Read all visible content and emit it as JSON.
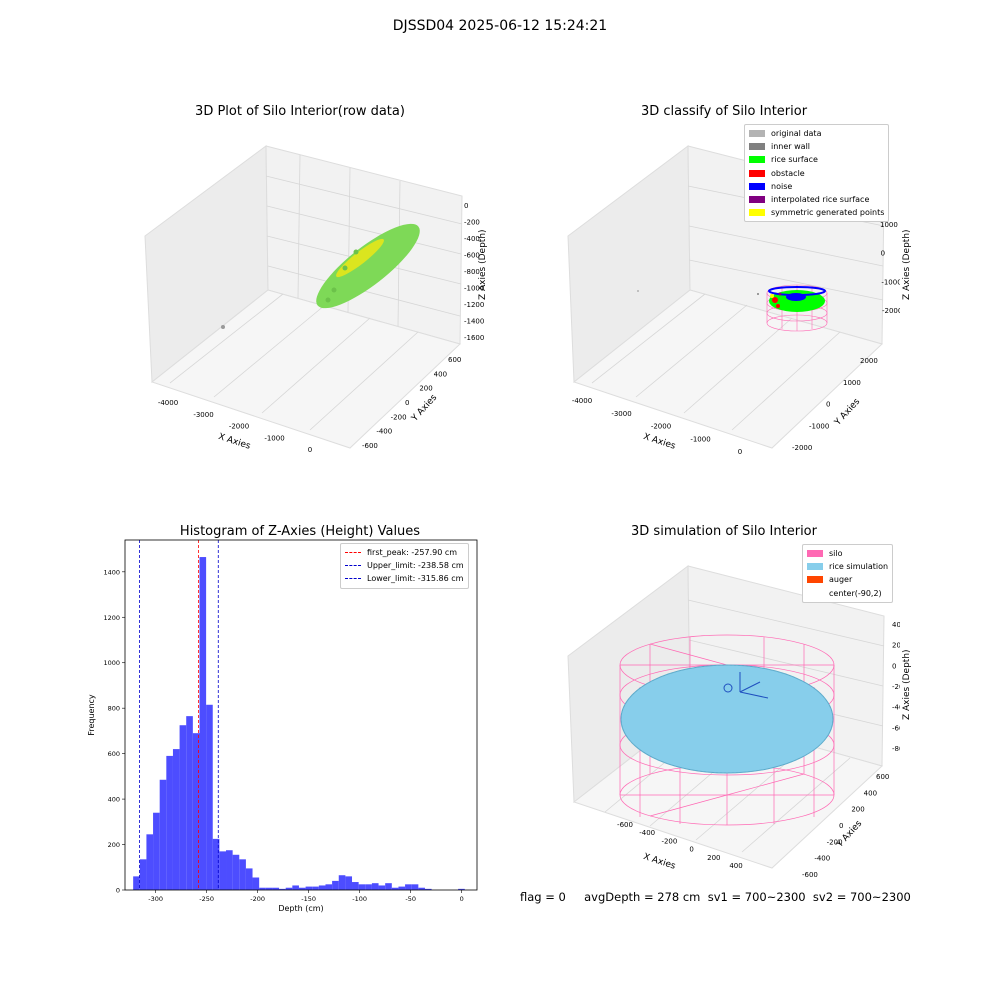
{
  "suptitle": "DJSSD04 2025-06-12 15:24:21",
  "footer_text": "flag = 0     avgDepth = 278 cm  sv1 = 700~2300  sv2 = 700~2300",
  "chart_data": [
    {
      "type": "scatter",
      "projection": "3d",
      "title": "3D Plot of Silo Interior(row data)",
      "xlabel": "X Axies",
      "ylabel": "Y Axies",
      "zlabel": "Z Axies (Depth)",
      "x_ticks": [
        "-4000",
        "-3000",
        "-2000",
        "-1000",
        "0"
      ],
      "y_ticks": [
        "-600",
        "-400",
        "-200",
        "0",
        "200",
        "400",
        "600"
      ],
      "z_ticks": [
        "0",
        "-200",
        "-400",
        "-600",
        "-800",
        "-1000",
        "-1200",
        "-1400",
        "-1600"
      ],
      "colors": {
        "main": "#7ed957",
        "top": "#e6e619",
        "outlier": "#999999"
      }
    },
    {
      "type": "scatter",
      "projection": "3d",
      "title": "3D classify of Silo Interior",
      "xlabel": "X Axies",
      "ylabel": "Y Axies",
      "zlabel": "Z Axies (Depth)",
      "x_ticks": [
        "-4000",
        "-3000",
        "-2000",
        "-1000",
        "0"
      ],
      "y_ticks": [
        "-2000",
        "-1000",
        "0",
        "1000",
        "2000"
      ],
      "z_ticks": [
        "1000",
        "0",
        "-1000",
        "-2000"
      ],
      "legend": [
        {
          "name": "original data",
          "color": "#b3b3b3"
        },
        {
          "name": "inner wall",
          "color": "#808080"
        },
        {
          "name": "rice surface",
          "color": "#00ff00"
        },
        {
          "name": "obstacle",
          "color": "#ff0000"
        },
        {
          "name": "noise",
          "color": "#0000ff"
        },
        {
          "name": "interpolated rice surface",
          "color": "#800080"
        },
        {
          "name": "symmetric generated points",
          "color": "#ffff00"
        }
      ]
    },
    {
      "type": "bar",
      "title": "Histogram of Z-Axies (Height) Values",
      "xlabel": "Depth (cm)",
      "ylabel": "Frequency",
      "xlim": [
        -330,
        15
      ],
      "ylim": [
        0,
        1540
      ],
      "x_ticks": [
        -300,
        -250,
        -200,
        -150,
        -100,
        -50,
        0
      ],
      "y_ticks": [
        0,
        200,
        400,
        600,
        800,
        1000,
        1200,
        1400
      ],
      "bin_start": -322,
      "bin_width": 6.5,
      "bar_color": "#4d4dff",
      "values": [
        60,
        135,
        245,
        340,
        485,
        590,
        620,
        725,
        765,
        690,
        1465,
        815,
        225,
        170,
        175,
        155,
        135,
        95,
        55,
        10,
        10,
        10,
        5,
        10,
        20,
        10,
        15,
        15,
        20,
        25,
        40,
        65,
        60,
        35,
        25,
        25,
        30,
        20,
        30,
        10,
        15,
        25,
        25,
        10,
        5,
        0,
        0,
        0,
        0,
        5,
        0
      ],
      "vlines": [
        {
          "name": "first_peak: -257.90 cm",
          "x": -257.9,
          "color": "#ff0000"
        },
        {
          "name": "Upper_limit: -238.58 cm",
          "x": -238.58,
          "color": "#0000cc"
        },
        {
          "name": "Lower_limit: -315.86 cm",
          "x": -315.86,
          "color": "#0000cc"
        }
      ]
    },
    {
      "type": "scatter",
      "projection": "3d",
      "title": "3D simulation of Silo Interior",
      "xlabel": "X Axies",
      "ylabel": "Y Axies",
      "zlabel": "Z Axies (Depth)",
      "x_ticks": [
        "-600",
        "-400",
        "-200",
        "0",
        "200",
        "400"
      ],
      "y_ticks": [
        "-600",
        "-400",
        "-200",
        "0",
        "200",
        "400",
        "600"
      ],
      "z_ticks": [
        "400",
        "200",
        "0",
        "-200",
        "-400",
        "-600",
        "-800"
      ],
      "legend": [
        {
          "name": "silo",
          "color": "#ff69b4"
        },
        {
          "name": "rice simulation",
          "color": "#87ceeb"
        },
        {
          "name": "auger",
          "color": "#ff4500"
        },
        {
          "name": "center(-90,2)",
          "color": ""
        }
      ]
    }
  ]
}
